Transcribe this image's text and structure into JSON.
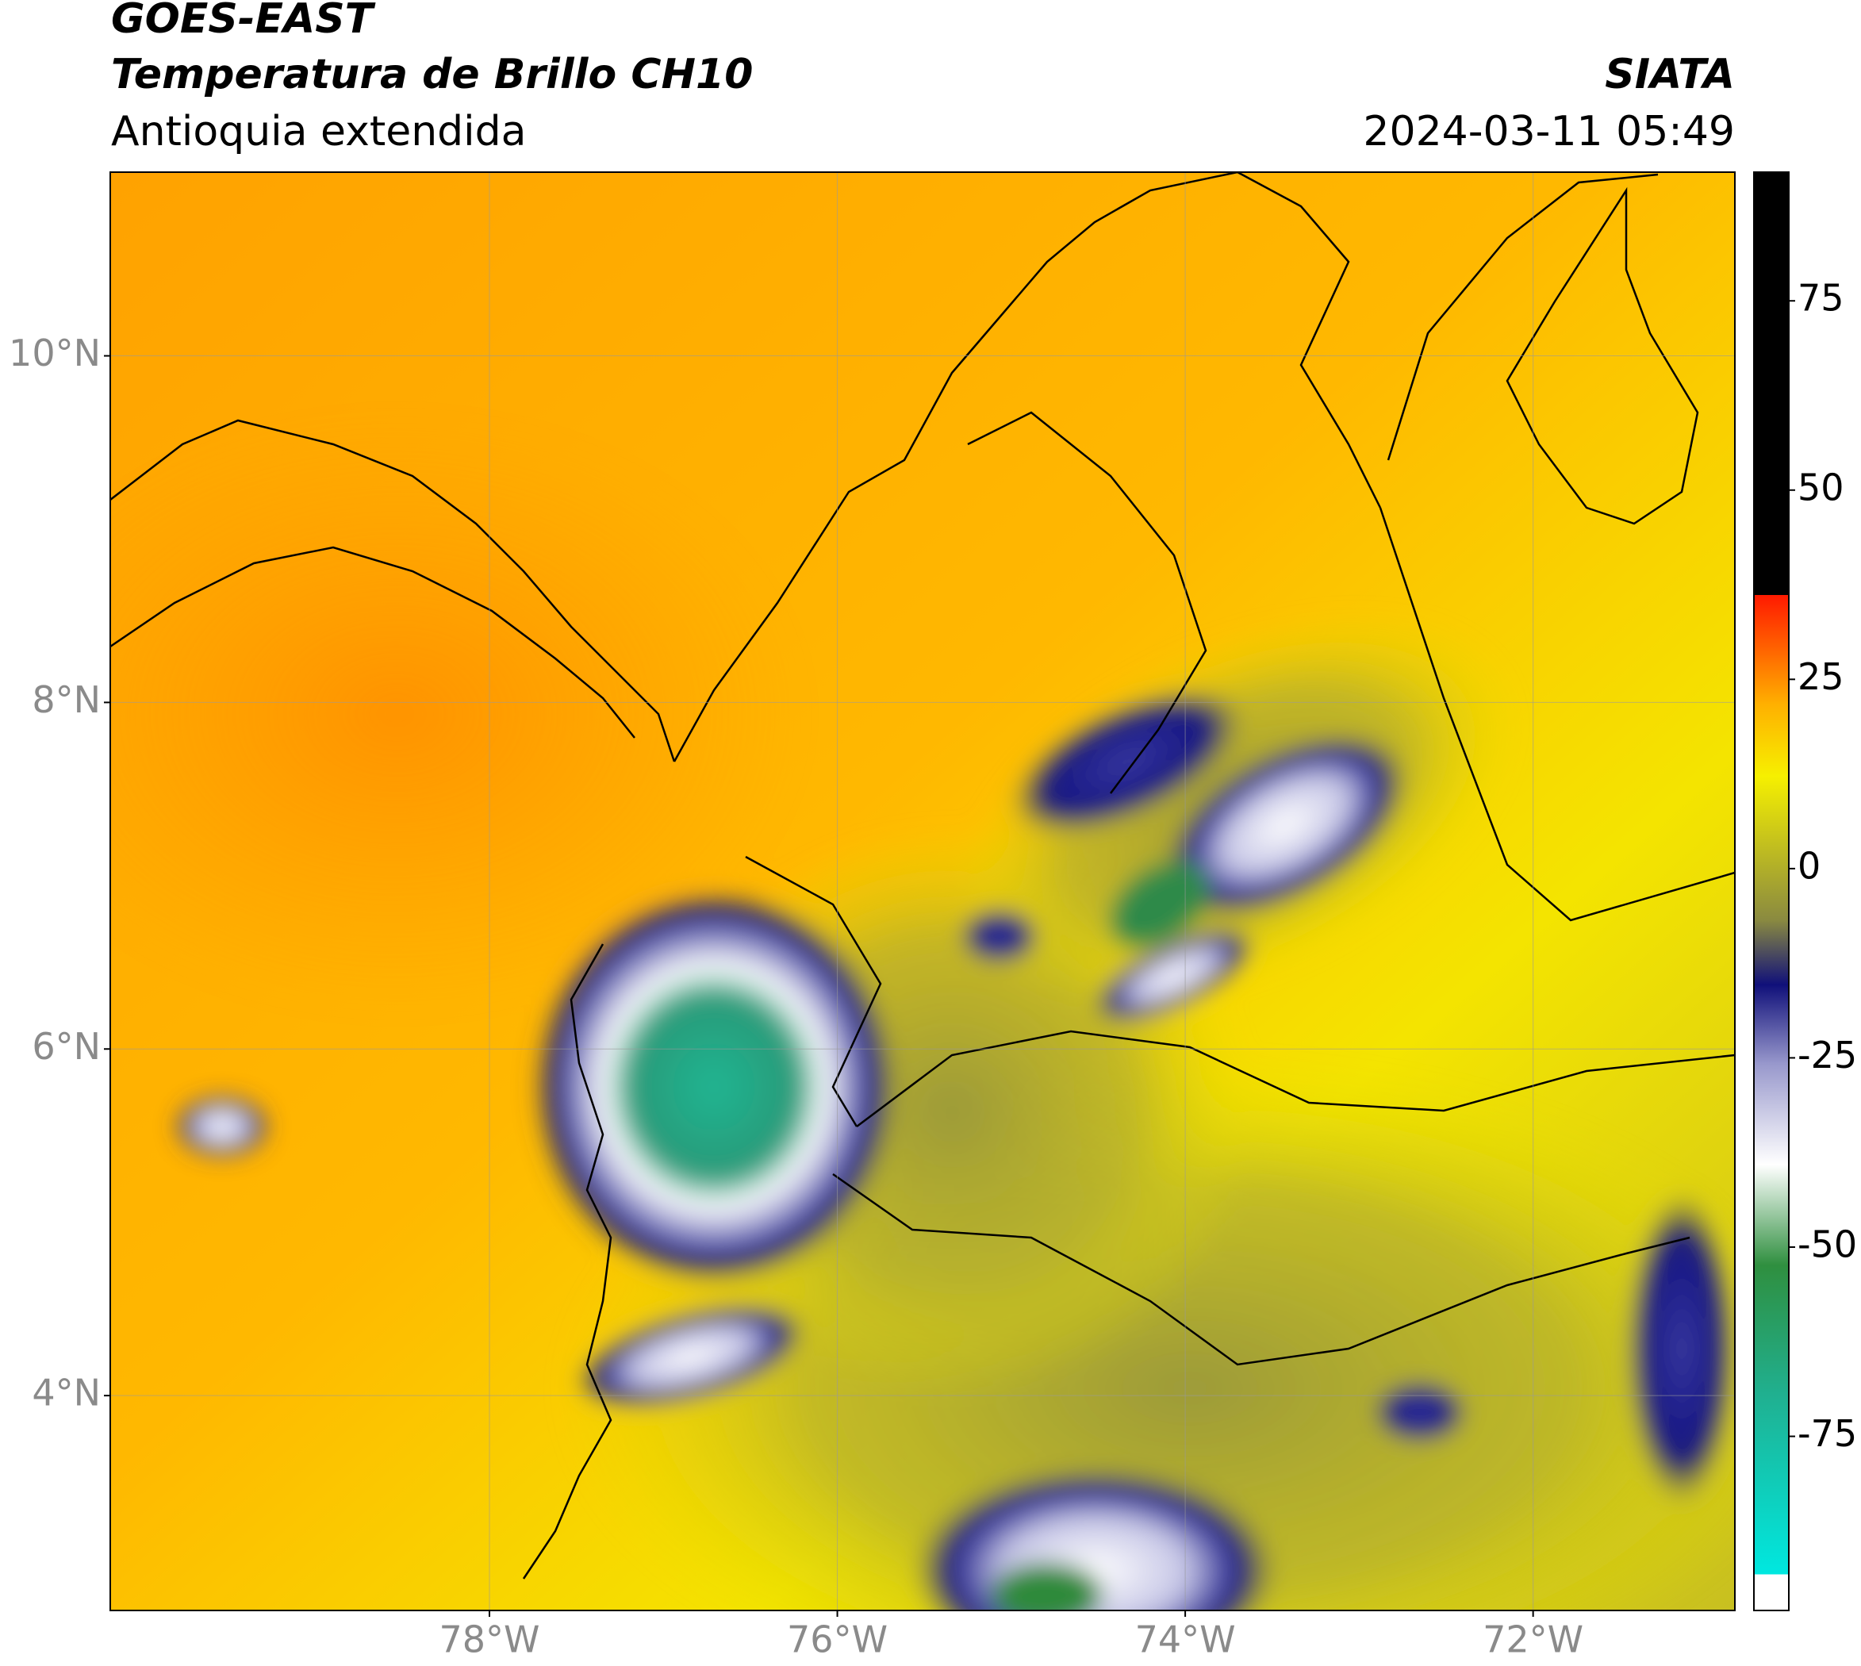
{
  "header": {
    "title": "GOES-EAST",
    "subtitle": "Temperatura de Brillo CH10",
    "region": "Antioquia extendida",
    "source": "SIATA",
    "datetime": "2024-03-11 05:49"
  },
  "map": {
    "xlim": [
      -80.18,
      -70.84
    ],
    "ylim": [
      2.76,
      11.06
    ],
    "xticks": [
      {
        "value": -78,
        "label": "78°W"
      },
      {
        "value": -76,
        "label": "76°W"
      },
      {
        "value": -74,
        "label": "74°W"
      },
      {
        "value": -72,
        "label": "72°W"
      }
    ],
    "yticks": [
      {
        "value": 4,
        "label": "4°N"
      },
      {
        "value": 6,
        "label": "6°N"
      },
      {
        "value": 8,
        "label": "8°N"
      },
      {
        "value": 10,
        "label": "10°N"
      }
    ],
    "grid": true
  },
  "colorbar": {
    "lim": [
      -98,
      92
    ],
    "ticks": [
      -75,
      -50,
      -25,
      0,
      25,
      50,
      75
    ]
  }
}
